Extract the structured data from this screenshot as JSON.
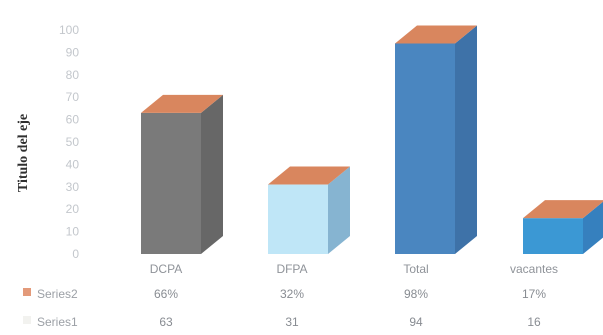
{
  "chart_data": {
    "type": "bar",
    "style": "3d-column",
    "title": "",
    "ylabel": "Titulo del eje",
    "xlabel": "",
    "categories": [
      "DCPA",
      "DFPA",
      "Total",
      "vacantes"
    ],
    "yticks": [
      "0",
      "10",
      "20",
      "30",
      "40",
      "50",
      "60",
      "70",
      "80",
      "90",
      "100"
    ],
    "ylim": [
      0,
      100
    ],
    "grid": false,
    "legend": "data-table-bottom",
    "series": [
      {
        "name": "Series1",
        "values": [
          63,
          31,
          94,
          16
        ],
        "labels": [
          "63",
          "31",
          "94",
          "16"
        ]
      },
      {
        "name": "Series2",
        "values": [
          0.66,
          0.32,
          0.98,
          0.17
        ],
        "labels": [
          "66%",
          "32%",
          "98%",
          "17%"
        ]
      }
    ],
    "colors": {
      "bars": [
        "#7a7a7a",
        "#bfe6f7",
        "#4a86c0",
        "#3b98d4"
      ],
      "bar_sides": [
        "#676767",
        "#86b4d1",
        "#3e72a8",
        "#3680be"
      ],
      "top": "#d9865e",
      "series2_legend": "#e39a7a",
      "series1_legend": "#f2f2ef"
    }
  }
}
